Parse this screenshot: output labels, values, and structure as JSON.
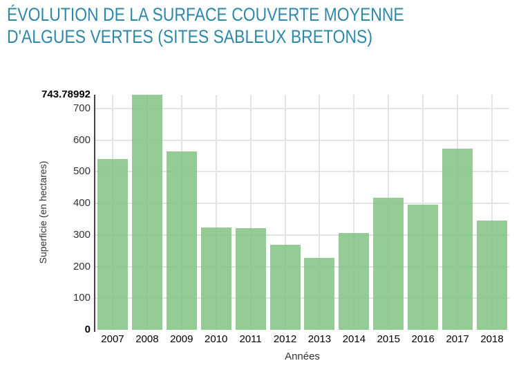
{
  "page": {
    "background": "#ffffff"
  },
  "header": {
    "title_lines": [
      "ÉVOLUTION DE LA SURFACE COUVERTE MOYENNE",
      "D'ALGUES VERTES (SITES SABLEUX BRETONS)"
    ],
    "title_color": "#2d88ab"
  },
  "chart_data": {
    "type": "bar",
    "title": "ÉVOLUTION DE LA SURFACE COUVERTE MOYENNE D'ALGUES VERTES (SITES SABLEUX BRETONS)",
    "xlabel": "Années",
    "ylabel": "Superficie (en hectares)",
    "categories": [
      "2007",
      "2008",
      "2009",
      "2010",
      "2011",
      "2012",
      "2013",
      "2014",
      "2015",
      "2016",
      "2017",
      "2018"
    ],
    "values": [
      541,
      743.78992,
      565,
      324,
      321,
      270,
      228,
      306,
      418,
      396,
      573,
      345
    ],
    "ylim": [
      0,
      743.78992
    ],
    "yticks": [
      0,
      100,
      200,
      300,
      400,
      500,
      600,
      700
    ],
    "ymax_label": "743.78992",
    "ymin_label": "0",
    "grid": true,
    "legend": "none",
    "colors": {
      "bar_fill": "rgba(130,194,130,0.85)",
      "bar_solid": "#94ca94",
      "gridline": "#e4e4e4",
      "axis_line": "#444444",
      "tick_label": "#333333",
      "emphasis_tick_label": "#000000",
      "title": "#2d88ab"
    }
  }
}
